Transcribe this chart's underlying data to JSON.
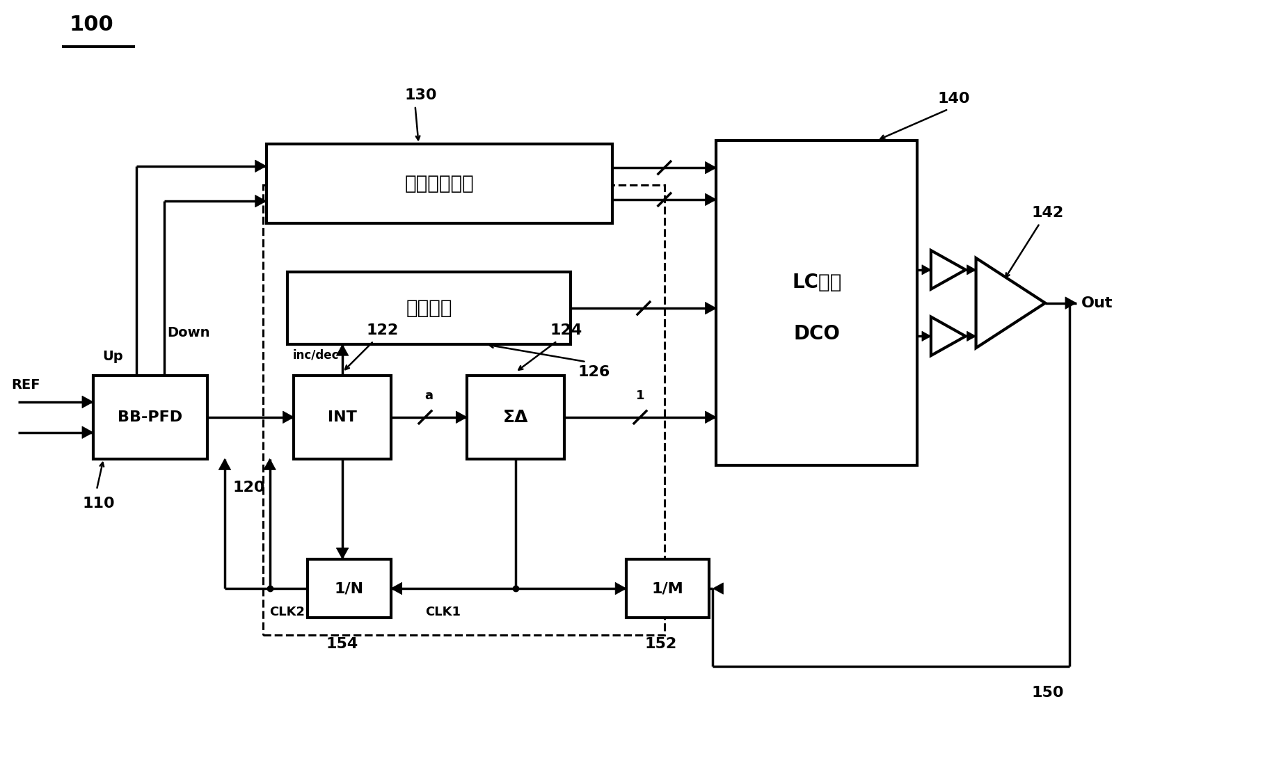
{
  "bg_color": "#ffffff",
  "line_color": "#000000",
  "lw": 2.5,
  "blw": 3.0,
  "labels": {
    "title": "100",
    "ref_130": "130",
    "ref_140": "140",
    "ref_110": "110",
    "ref_120": "120",
    "ref_122": "122",
    "ref_124": "124",
    "ref_126": "126",
    "ref_142": "142",
    "ref_150": "150",
    "ref_152": "152",
    "ref_154": "154",
    "bb_pfd": "BB-PFD",
    "int_box": "INT",
    "sigma_delta": "ΣΔ",
    "analog_path": "模拟比例路径",
    "band_ctrl": "频带控制",
    "lc_dco_line1": "LC谐振",
    "lc_dco_line2": "DCO",
    "one_over_n": "1/N",
    "one_over_m": "1/M",
    "ref_label": "REF",
    "out_label": "Out",
    "up_label": "Up",
    "down_label": "Down",
    "inc_dec": "inc/dec",
    "clk1": "CLK1",
    "clk2": "CLK2",
    "a_label": "a",
    "one_label": "1"
  },
  "boxes": {
    "bbpfd": [
      1.3,
      4.6,
      1.65,
      1.2
    ],
    "int": [
      4.2,
      4.6,
      1.4,
      1.2
    ],
    "sd": [
      6.7,
      4.6,
      1.4,
      1.2
    ],
    "n_div": [
      4.4,
      2.3,
      1.2,
      0.85
    ],
    "m_div": [
      9.0,
      2.3,
      1.2,
      0.85
    ],
    "analog": [
      3.8,
      8.0,
      5.0,
      1.15
    ],
    "band": [
      4.1,
      6.25,
      4.1,
      1.05
    ],
    "lco": [
      10.3,
      4.5,
      2.9,
      4.7
    ],
    "dash": [
      3.75,
      2.05,
      5.8,
      6.5
    ]
  }
}
